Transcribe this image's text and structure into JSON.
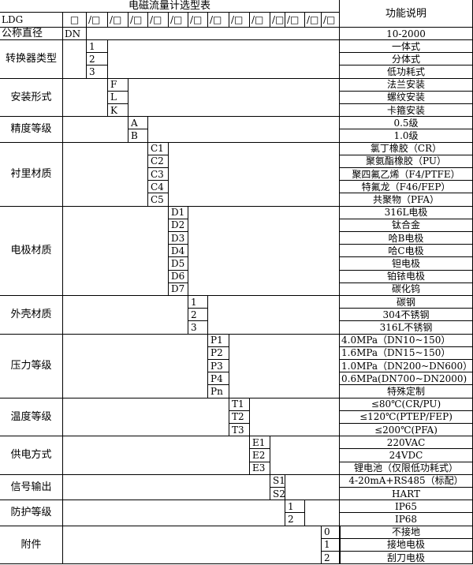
{
  "title": "电磁流量计选型表",
  "function_header": "功能说明",
  "model_row": {
    "prefix": "LDG",
    "first_box": "□",
    "slot": "/□",
    "slot_count": 13
  },
  "nominal_diameter": {
    "label": "公称直径",
    "code": "DN",
    "desc": "10-2000"
  },
  "groups": [
    {
      "label": "转换器类型",
      "col": 0,
      "items": [
        {
          "code": "1",
          "desc": "一体式"
        },
        {
          "code": "2",
          "desc": "分体式"
        },
        {
          "code": "3",
          "desc": "低功耗式"
        }
      ]
    },
    {
      "label": "安装形式",
      "col": 1,
      "items": [
        {
          "code": "F",
          "desc": "法兰安装"
        },
        {
          "code": "L",
          "desc": "螺纹安装"
        },
        {
          "code": "K",
          "desc": "卡箍安装"
        }
      ]
    },
    {
      "label": "精度等级",
      "col": 2,
      "items": [
        {
          "code": "A",
          "desc": "0.5级"
        },
        {
          "code": "B",
          "desc": "1.0级"
        }
      ]
    },
    {
      "label": "衬里材质",
      "col": 3,
      "items": [
        {
          "code": "C1",
          "desc": "氯丁橡胶（CR）"
        },
        {
          "code": "C2",
          "desc": "聚氨酯橡胶（PU）"
        },
        {
          "code": "C3",
          "desc": "聚四氟乙烯（F4/PTFE）"
        },
        {
          "code": "C4",
          "desc": "特氟龙（F46/FEP）"
        },
        {
          "code": "C5",
          "desc": "共聚物（PFA）"
        }
      ]
    },
    {
      "label": "电极材质",
      "col": 4,
      "items": [
        {
          "code": "D1",
          "desc": "316L电极"
        },
        {
          "code": "D2",
          "desc": "钛合金"
        },
        {
          "code": "D3",
          "desc": "哈B电极"
        },
        {
          "code": "D4",
          "desc": "哈C电极"
        },
        {
          "code": "D5",
          "desc": "钽电极"
        },
        {
          "code": "D6",
          "desc": "铂铱电极"
        },
        {
          "code": "D7",
          "desc": "碳化钨"
        }
      ]
    },
    {
      "label": "外壳材质",
      "col": 5,
      "items": [
        {
          "code": "1",
          "desc": "碳钢"
        },
        {
          "code": "2",
          "desc": "304不锈钢"
        },
        {
          "code": "3",
          "desc": "316L不锈钢"
        }
      ]
    },
    {
      "label": "压力等级",
      "col": 6,
      "items": [
        {
          "code": "P1",
          "desc": "4.0MPa（DN10~150）",
          "left": true
        },
        {
          "code": "P2",
          "desc": "1.6MPa（DN15~150）",
          "left": true
        },
        {
          "code": "P3",
          "desc": "1.0MPa（DN200~DN600）",
          "left": true
        },
        {
          "code": "P4",
          "desc": "0.6MPa(DN700~DN2000)",
          "left": true
        },
        {
          "code": "Pn",
          "desc": "特殊定制"
        }
      ]
    },
    {
      "label": "温度等级",
      "col": 7,
      "items": [
        {
          "code": "T1",
          "desc": "≤80℃(CR/PU)"
        },
        {
          "code": "T2",
          "desc": "≤120℃(PTEP/FEP)"
        },
        {
          "code": "T3",
          "desc": "≤200℃(PFA)"
        }
      ]
    },
    {
      "label": "供电方式",
      "col": 8,
      "items": [
        {
          "code": "E1",
          "desc": "220VAC"
        },
        {
          "code": "E2",
          "desc": "24VDC"
        },
        {
          "code": "E3",
          "desc": "锂电池（仅限低功耗式）"
        }
      ]
    },
    {
      "label": "信号输出",
      "col": 9,
      "items": [
        {
          "code": "S1",
          "desc": "4-20mA+RS485（标配）"
        },
        {
          "code": "S2",
          "desc": "HART"
        }
      ]
    },
    {
      "label": "防护等级",
      "col": 10,
      "items": [
        {
          "code": "1",
          "desc": "IP65"
        },
        {
          "code": "2",
          "desc": "IP68"
        }
      ]
    },
    {
      "label": "附件",
      "col": 12,
      "items": [
        {
          "code": "0",
          "desc": "不接地"
        },
        {
          "code": "1",
          "desc": "接地电极"
        },
        {
          "code": "2",
          "desc": "刮刀电极"
        }
      ]
    }
  ]
}
